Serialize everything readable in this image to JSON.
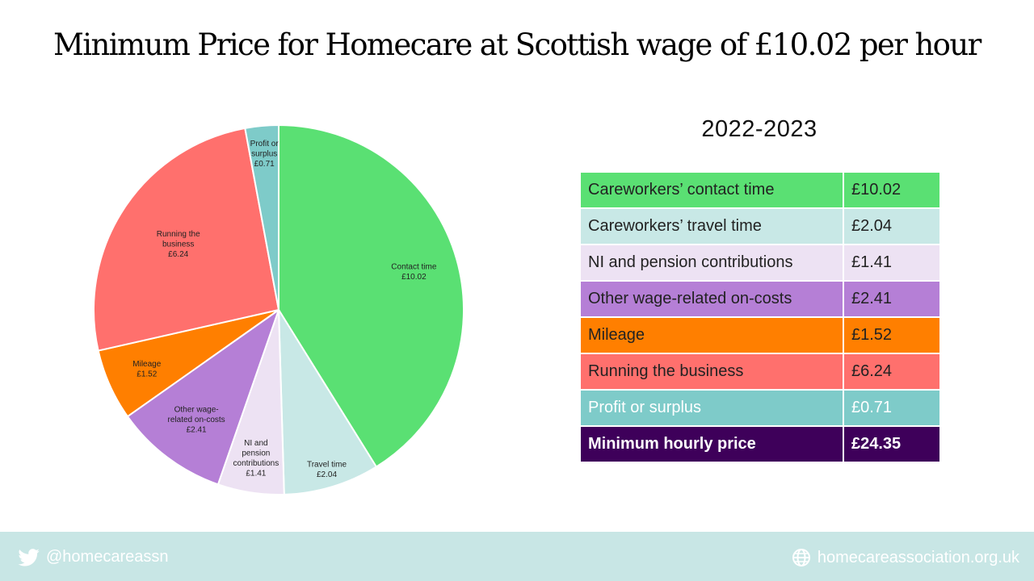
{
  "title": "Minimum Price for Homecare at Scottish wage of £10.02 per hour",
  "year_label": "2022-2023",
  "chart_data": {
    "type": "pie",
    "title": "Minimum Price for Homecare at Scottish wage of £10.02 per hour",
    "start_angle_deg": 0,
    "direction": "clockwise",
    "slices": [
      {
        "label_lines": [
          "Contact time",
          "£10.02"
        ],
        "value": 10.02,
        "color": "#5ae073",
        "label_r": 0.76
      },
      {
        "label_lines": [
          "Travel time",
          "£2.04"
        ],
        "value": 2.04,
        "color": "#c8e8e6",
        "label_r": 0.9
      },
      {
        "label_lines": [
          "NI and",
          "pension",
          "contributions",
          "£1.41"
        ],
        "value": 1.41,
        "color": "#ede2f3",
        "label_r": 0.81
      },
      {
        "label_lines": [
          "Other wage-",
          "related on-costs",
          "£2.41"
        ],
        "value": 2.41,
        "color": "#b57fd6",
        "label_r": 0.74
      },
      {
        "label_lines": [
          "Mileage",
          "£1.52"
        ],
        "value": 1.52,
        "color": "#ff7f00",
        "label_r": 0.78
      },
      {
        "label_lines": [
          "Running the",
          "business",
          "£6.24"
        ],
        "value": 6.24,
        "color": "#ff706d",
        "label_r": 0.65
      },
      {
        "label_lines": [
          "Profit or",
          "surplus",
          "£0.71"
        ],
        "value": 0.71,
        "color": "#7ecbc9",
        "label_r": 0.85
      }
    ]
  },
  "table": {
    "rows": [
      {
        "item": "Careworkers’ contact time",
        "amount": "£10.02",
        "color": "#5ae073"
      },
      {
        "item": "Careworkers’ travel time",
        "amount": "£2.04",
        "color": "#c8e8e6"
      },
      {
        "item": "NI and pension contributions",
        "amount": "£1.41",
        "color": "#ede2f3"
      },
      {
        "item": "Other wage-related on-costs",
        "amount": "£2.41",
        "color": "#b57fd6"
      },
      {
        "item": "Mileage",
        "amount": "£1.52",
        "color": "#ff7f00"
      },
      {
        "item": "Running the business",
        "amount": "£6.24",
        "color": "#ff706d"
      },
      {
        "item": "Profit or surplus",
        "amount": "£0.71",
        "color": "#7ecbc9",
        "text_color": "#ffffff"
      },
      {
        "item": "Minimum hourly price",
        "amount": "£24.35",
        "color": "#3e005a",
        "total": true
      }
    ]
  },
  "footer": {
    "twitter_icon": "twitter-bird-icon",
    "twitter_handle": "@homecareassn",
    "web_icon": "globe-icon",
    "website": "homecareassociation.org.uk",
    "background": "#c8e6e5"
  }
}
